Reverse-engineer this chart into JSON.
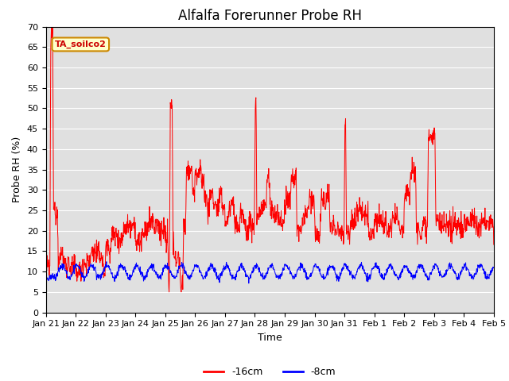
{
  "title": "Alfalfa Forerunner Probe RH",
  "xlabel": "Time",
  "ylabel": "Probe RH (%)",
  "ylim": [
    0,
    70
  ],
  "xlabels": [
    "Jan 21",
    "Jan 22",
    "Jan 23",
    "Jan 24",
    "Jan 25",
    "Jan 26",
    "Jan 27",
    "Jan 28",
    "Jan 29",
    "Jan 30",
    "Jan 31",
    "Feb 1",
    "Feb 2",
    "Feb 3",
    "Feb 4",
    "Feb 5"
  ],
  "legend_label_red": "-16cm",
  "legend_label_blue": "-8cm",
  "legend_color_red": "#ff0000",
  "legend_color_blue": "#0000ff",
  "annotation_text": "TA_soilco2",
  "annotation_bg": "#ffffcc",
  "annotation_border": "#cc8800",
  "annotation_text_color": "#cc0000",
  "bg_color": "#e0e0e0",
  "grid_color": "#ffffff",
  "title_fontsize": 12,
  "axis_label_fontsize": 9,
  "tick_fontsize": 8
}
